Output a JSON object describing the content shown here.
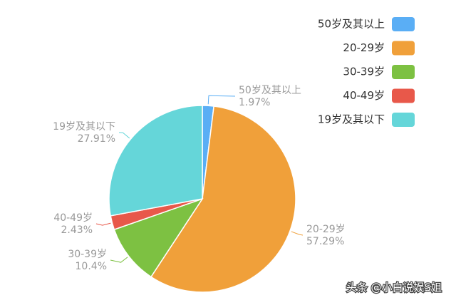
{
  "chart_data": {
    "type": "pie",
    "categories": [
      "50岁及其以上",
      "20-29岁",
      "30-39岁",
      "40-49岁",
      "19岁及其以下"
    ],
    "values": [
      1.97,
      57.29,
      10.4,
      2.43,
      27.91
    ],
    "value_labels": [
      "1.97%",
      "57.29%",
      "10.4%",
      "2.43%",
      "27.91%"
    ],
    "colors": [
      "#5aaef5",
      "#f0a03a",
      "#7dc142",
      "#e8584a",
      "#65d6d9"
    ],
    "legend": "top-right"
  },
  "watermark": "头条 @小白说娱S姐"
}
